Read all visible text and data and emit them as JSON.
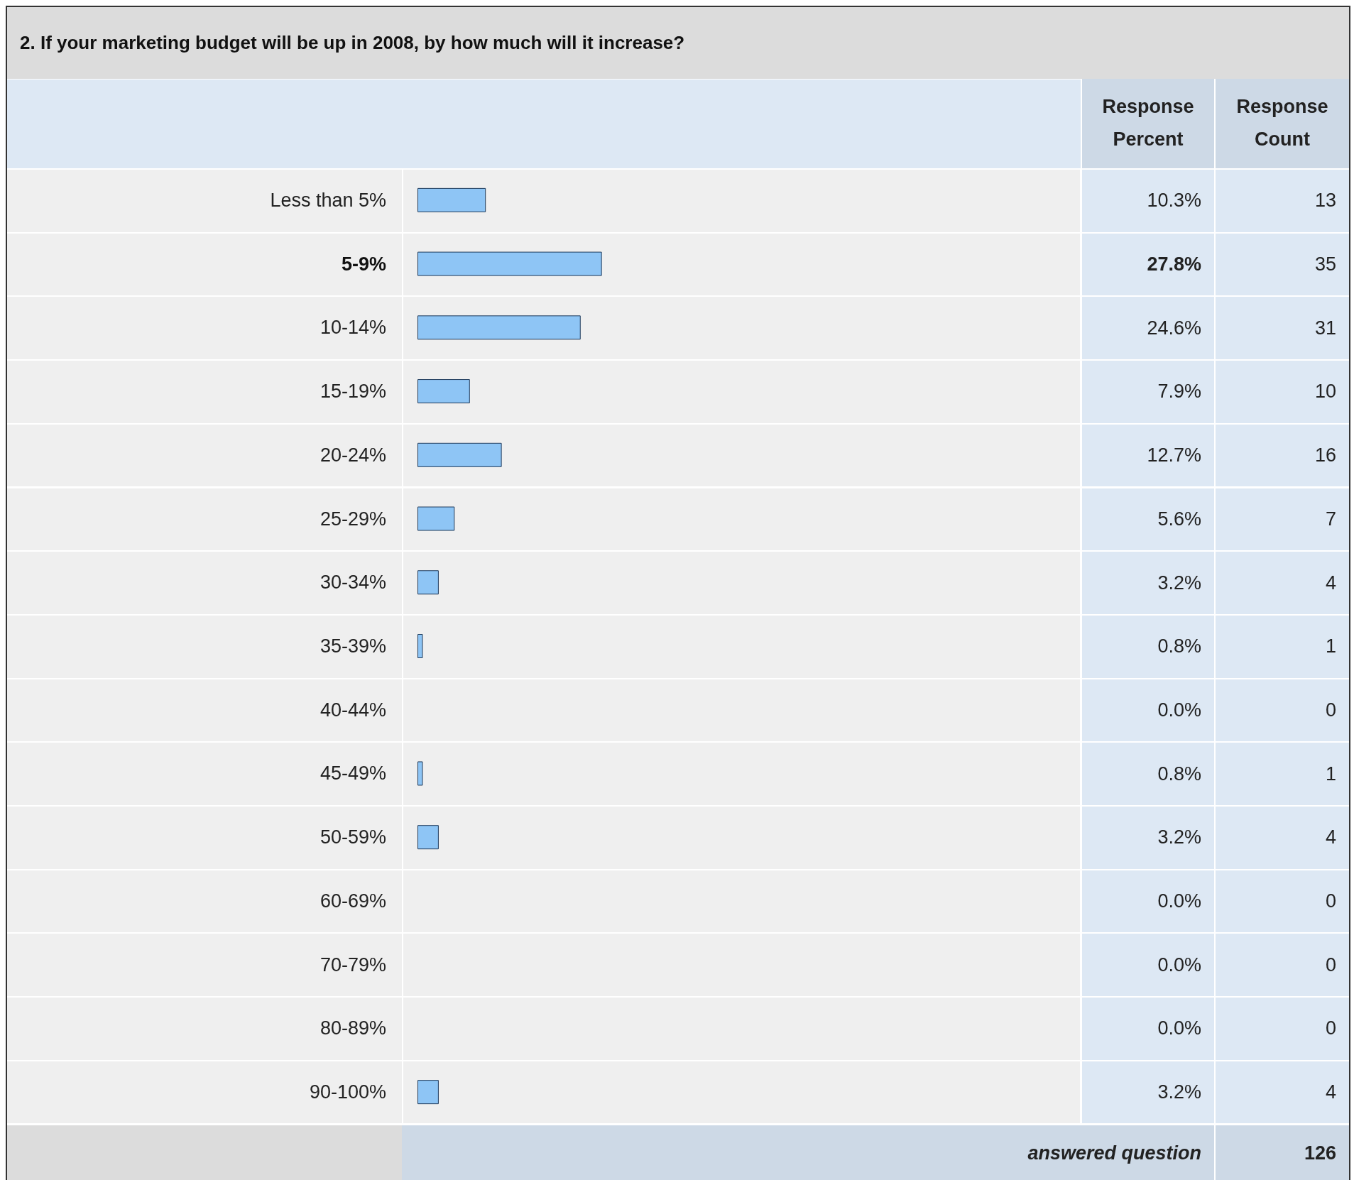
{
  "chart_data": [
    {
      "type": "bar",
      "orientation": "horizontal",
      "title": "2. If your marketing budget will be up in 2008, by how much will it increase?",
      "categories": [
        "Less than 5%",
        "5-9%",
        "10-14%",
        "15-19%",
        "20-24%",
        "25-29%",
        "30-34%",
        "35-39%",
        "40-44%",
        "45-49%",
        "50-59%",
        "60-69%",
        "70-79%",
        "80-89%",
        "90-100%"
      ],
      "series": [
        {
          "name": "Response Percent",
          "color": "#8ec5f5",
          "values": [
            10.3,
            27.8,
            24.6,
            7.9,
            12.7,
            5.6,
            3.2,
            0.8,
            0.0,
            0.8,
            3.2,
            0.0,
            0.0,
            0.0,
            3.2
          ],
          "value_labels": [
            "10.3%",
            "27.8%",
            "24.6%",
            "7.9%",
            "12.7%",
            "5.6%",
            "3.2%",
            "0.8%",
            "0.0%",
            "0.8%",
            "3.2%",
            "0.0%",
            "0.0%",
            "0.0%",
            "3.2%"
          ]
        }
      ],
      "xlim": [
        0,
        100
      ],
      "tick_labels": "y",
      "legend": false,
      "annotations": [
        "answered question"
      ]
    },
    {
      "type": "other",
      "title": "Response Count",
      "values": [
        13,
        35,
        31,
        10,
        16,
        7,
        4,
        1,
        0,
        1,
        4,
        0,
        0,
        0,
        4
      ],
      "data_labels": true,
      "annotations": [
        "126"
      ]
    }
  ]
}
